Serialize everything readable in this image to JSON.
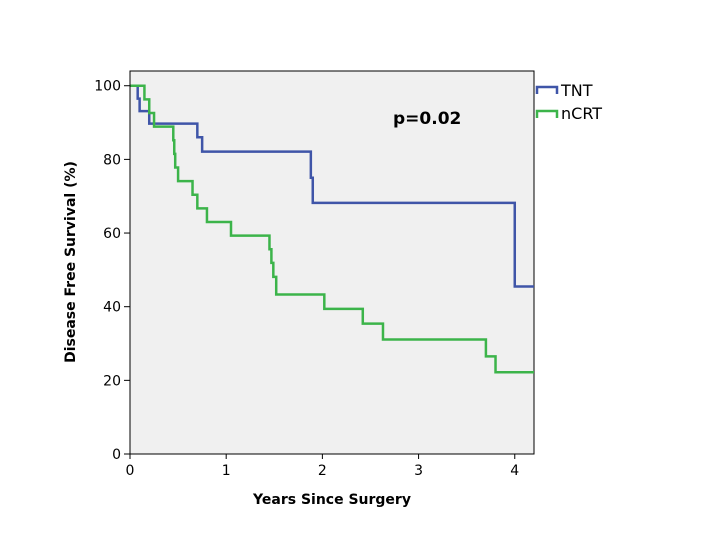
{
  "chart_data": {
    "type": "line",
    "step": true,
    "xlabel": "Years Since Surgery",
    "ylabel": "Disease Free Survival (%)",
    "xlim": [
      0,
      4.2
    ],
    "ylim": [
      0,
      104
    ],
    "xticks": [
      0,
      1,
      2,
      3,
      4
    ],
    "yticks": [
      0,
      20,
      40,
      60,
      80,
      100
    ],
    "grid": false,
    "legend_position": "right",
    "annotation": "p=0.02",
    "colors": {
      "plot_bg": "#f0f0f0"
    },
    "series": [
      {
        "name": "TNT",
        "color": "#3f55a8",
        "x": [
          0,
          0.08,
          0.1,
          0.2,
          0.7,
          0.75,
          1.88,
          1.9,
          4.0,
          4.2
        ],
        "y": [
          100,
          96.5,
          93.1,
          89.7,
          86.0,
          82.1,
          75.0,
          68.2,
          45.5,
          45.5
        ]
      },
      {
        "name": "nCRT",
        "color": "#3cb44a",
        "x": [
          0,
          0.15,
          0.2,
          0.25,
          0.45,
          0.46,
          0.47,
          0.5,
          0.65,
          0.7,
          0.8,
          1.05,
          1.45,
          1.47,
          1.49,
          1.52,
          2.02,
          2.42,
          2.63,
          3.7,
          3.8,
          4.2
        ],
        "y": [
          100,
          96.3,
          92.6,
          88.9,
          85.2,
          81.5,
          77.8,
          74.1,
          70.4,
          66.7,
          63.0,
          59.3,
          55.6,
          51.9,
          48.1,
          43.3,
          39.4,
          35.4,
          31.1,
          26.5,
          22.2,
          22.2
        ]
      }
    ]
  }
}
